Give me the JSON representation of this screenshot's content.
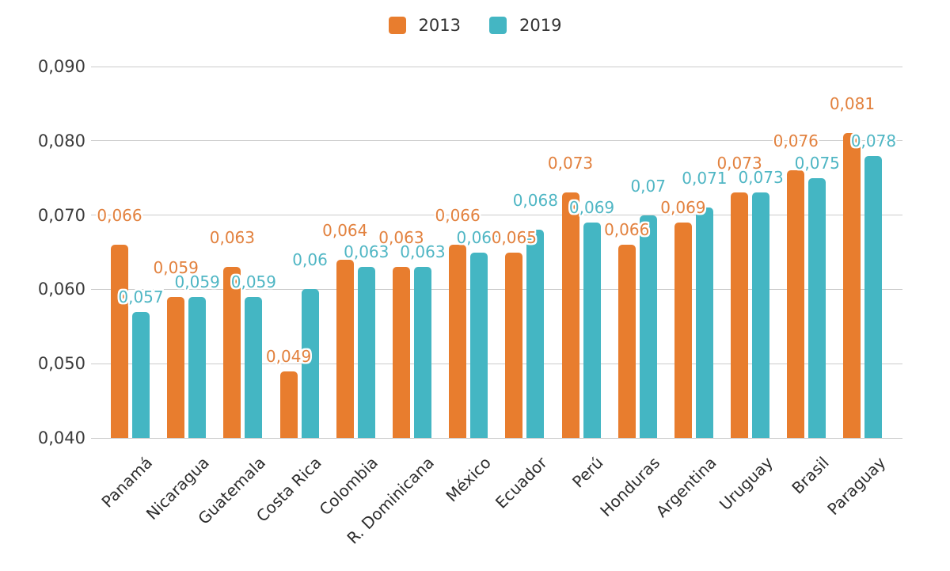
{
  "chart_data": {
    "type": "bar",
    "title": "",
    "categories": [
      "Panamá",
      "Nicaragua",
      "Guatemala",
      "Costa Rica",
      "Colombia",
      "R. Dominicana",
      "México",
      "Ecuador",
      "Perú",
      "Honduras",
      "Argentina",
      "Uruguay",
      "Brasil",
      "Paraguay"
    ],
    "series": [
      {
        "name": "2013",
        "color": "#E87D2E",
        "label_color": "#E2813E",
        "values": [
          0.066,
          0.059,
          0.063,
          0.049,
          0.064,
          0.063,
          0.066,
          0.065,
          0.073,
          0.066,
          0.069,
          0.073,
          0.076,
          0.081
        ],
        "value_labels": [
          "0,066",
          "0,059",
          "0,063",
          "0,049",
          "0,064",
          "0,063",
          "0,066",
          "0,065",
          "0,073",
          "0,066",
          "0,069",
          "0,073",
          "0,076",
          "0,081"
        ]
      },
      {
        "name": "2019",
        "color": "#44B6C3",
        "label_color": "#4FB6C4",
        "values": [
          0.057,
          0.059,
          0.059,
          0.06,
          0.063,
          0.063,
          0.065,
          0.068,
          0.069,
          0.07,
          0.071,
          0.073,
          0.075,
          0.078
        ],
        "value_labels": [
          "0,057",
          "0,059",
          "0,059",
          "0,06",
          "0,063",
          "0,063",
          "0,065",
          "0,068",
          "0,069",
          "0,07",
          "0,071",
          "0,073",
          "0,075",
          "0,078"
        ]
      }
    ],
    "y_axis": {
      "min": 0.04,
      "max": 0.09,
      "step": 0.01,
      "tick_labels": [
        "0,040",
        "0,050",
        "0,060",
        "0,070",
        "0,080",
        "0,090"
      ]
    },
    "legend": {
      "position": "top"
    },
    "grid": true,
    "decimal_separator": ","
  },
  "colors": {
    "background": "#ffffff",
    "gridline": "#cccccc",
    "axis_text": "#3b3b3b",
    "category_text": "#2d2d2d"
  }
}
